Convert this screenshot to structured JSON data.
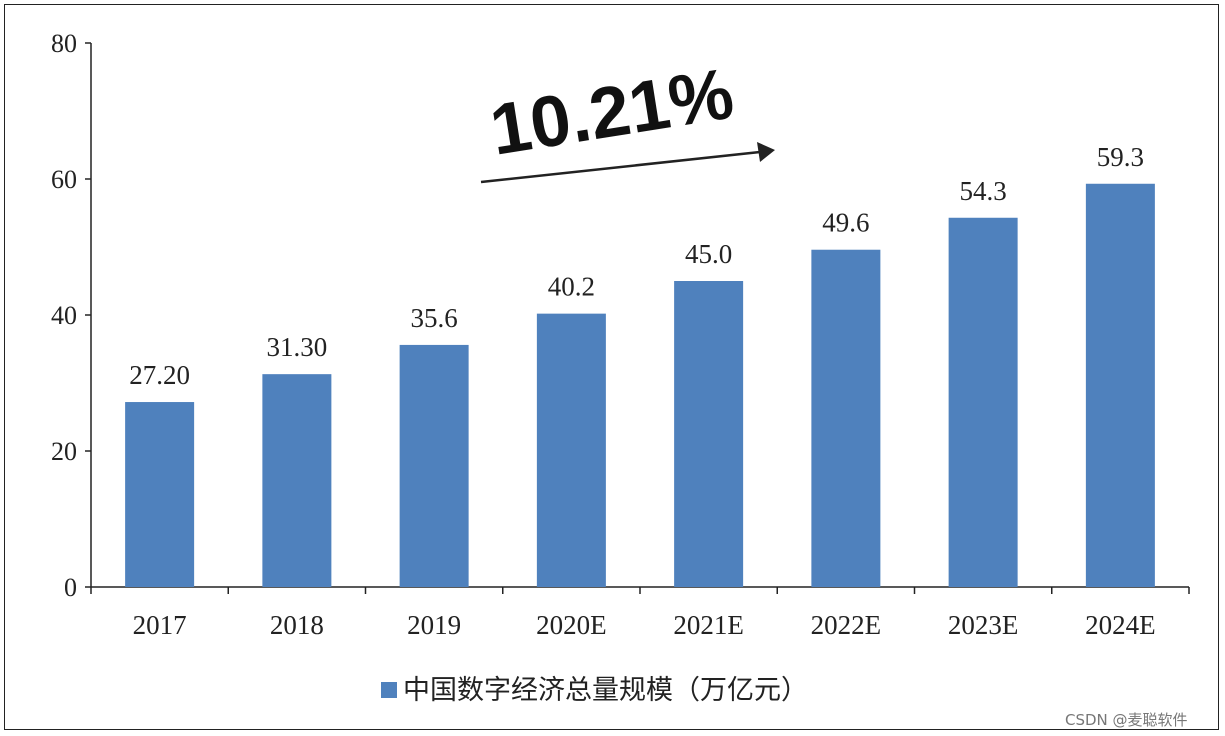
{
  "chart_data": {
    "type": "bar",
    "categories": [
      "2017",
      "2018",
      "2019",
      "2020E",
      "2021E",
      "2022E",
      "2023E",
      "2024E"
    ],
    "values": [
      27.2,
      31.3,
      35.6,
      40.2,
      45.0,
      49.6,
      54.3,
      59.3
    ],
    "value_labels": [
      "27.20",
      "31.30",
      "35.6",
      "40.2",
      "45.0",
      "49.6",
      "54.3",
      "59.3"
    ],
    "series": [
      {
        "name": "中国数字经济总量规模（万亿元）",
        "values": [
          27.2,
          31.3,
          35.6,
          40.2,
          45.0,
          49.6,
          54.3,
          59.3
        ]
      }
    ],
    "ylim": [
      0,
      80
    ],
    "yticks": [
      0,
      20,
      40,
      60,
      80
    ],
    "title": "",
    "xlabel": "",
    "ylabel": "",
    "grid": false,
    "legend_position": "bottom-center",
    "annotation": "10.21%",
    "bar_color": "#4F81BD"
  },
  "watermark": "CSDN @麦聪软件"
}
